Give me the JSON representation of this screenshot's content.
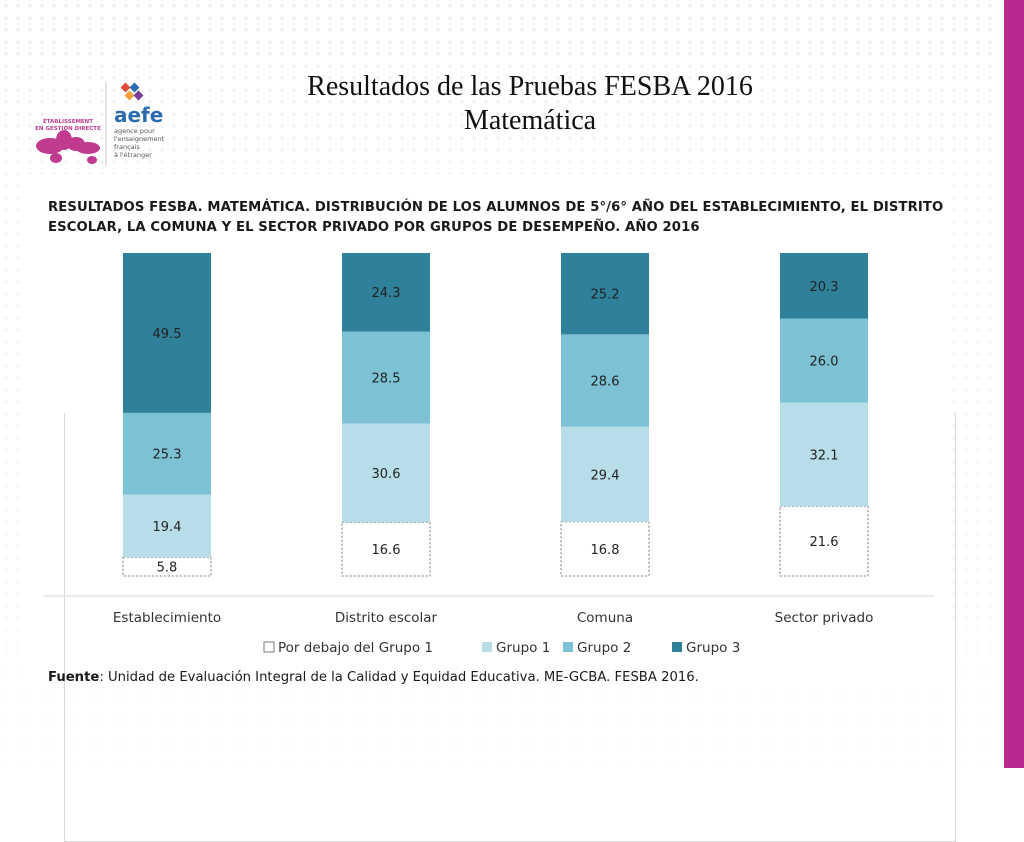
{
  "slide": {
    "title_line1": "Resultados de las Pruebas FESBA 2016",
    "title_line2": "Matemática",
    "source_label": "Fuente",
    "source_text": ": Unidad de Evaluación Integral de la Calidad y Equidad Educativa. ME-GCBA. FESBA 2016."
  },
  "logo": {
    "brand": "aefe",
    "side_line1": "ÉTABLISSEMENT",
    "side_line2": "EN GESTION DIRECTE",
    "tagline1": "agence pour",
    "tagline2": "l'enseignement",
    "tagline3": "français",
    "tagline4": "à l'étranger"
  },
  "colors": {
    "por_debajo": "#ffffff",
    "grupo1": "#b7dde8",
    "grupo2": "#7cc2d4",
    "grupo3": "#2e8199",
    "accent_magenta": "#b7298f"
  },
  "chart_data": {
    "type": "bar",
    "stacked": true,
    "title": "RESULTADOS FESBA. MATEMÁTICA. DISTRIBUCIÓN DE LOS ALUMNOS DE 5°/6° AÑO DEL ESTABLECIMIENTO, EL DISTRITO ESCOLAR, LA COMUNA Y EL SECTOR PRIVADO POR GRUPOS DE DESEMPEÑO. AÑO 2016",
    "categories": [
      "Establecimiento",
      "Distrito escolar",
      "Comuna",
      "Sector privado"
    ],
    "ylim": [
      0,
      100
    ],
    "legend_position": "bottom",
    "grid": false,
    "series": [
      {
        "name": "Por debajo del Grupo 1",
        "values": [
          5.8,
          16.6,
          16.8,
          21.6
        ],
        "labels": [
          "5.8",
          "16.6",
          "16.8",
          "21.6"
        ]
      },
      {
        "name": "Grupo 1",
        "values": [
          19.4,
          30.6,
          29.4,
          32.1
        ],
        "labels": [
          "19.4",
          "30.6",
          "29.4",
          "32.1"
        ]
      },
      {
        "name": "Grupo 2",
        "values": [
          25.3,
          28.5,
          28.6,
          26.0
        ],
        "labels": [
          "25.3",
          "28.5",
          "28.6",
          "26.0"
        ]
      },
      {
        "name": "Grupo 3",
        "values": [
          49.5,
          24.3,
          25.2,
          20.3
        ],
        "labels": [
          "49.5",
          "24.3",
          "25.2",
          "20.3"
        ]
      }
    ]
  }
}
